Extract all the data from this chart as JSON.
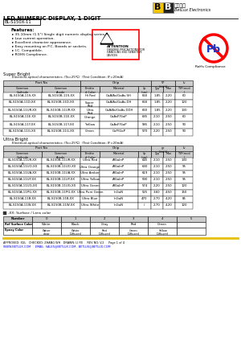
{
  "title": "LED NUMERIC DISPLAY, 1 DIGIT",
  "part_number": "BL-S150X-11",
  "features": [
    "35.10mm (1.5\") Single digit numeric display series.",
    "Low current operation.",
    "Excellent character appearance.",
    "Easy mounting on P.C. Boards or sockets.",
    "I.C. Compatible.",
    "ROHS Compliance."
  ],
  "super_bright_rows": [
    [
      "BL-S150A-11S-XX",
      "BL-S150B-11S-XX",
      "Hi Red",
      "GaAlAs/GaAs.SH",
      "660",
      "1.85",
      "2.20",
      "60"
    ],
    [
      "BL-S150A-11D-XX",
      "BL-S150B-11D-XX",
      "Super\nRed",
      "GaAlAs/GaAs.DH",
      "660",
      "1.85",
      "2.20",
      "120"
    ],
    [
      "BL-S150A-11UR-XX",
      "BL-S150B-11UR-XX",
      "Ultra\nRed",
      "GaAlAs/GaAs.DDH",
      "660",
      "1.85",
      "2.20",
      "130"
    ],
    [
      "BL-S150A-11E-XX",
      "BL-S150B-11E-XX",
      "Orange",
      "GaAsP/GaP",
      "635",
      "2.10",
      "2.50",
      "60"
    ],
    [
      "BL-S150A-11Y-XX",
      "BL-S150B-11Y-XX",
      "Yellow",
      "GaAsP/GaP",
      "585",
      "2.10",
      "2.50",
      "90"
    ],
    [
      "BL-S150A-11G-XX",
      "BL-S150B-11G-XX",
      "Green",
      "GaP/GaP",
      "570",
      "2.20",
      "2.50",
      "90"
    ]
  ],
  "ultra_bright_rows": [
    [
      "BL-S150A-11UR-XX\nX",
      "BL-S150B-11UR-XX\nX",
      "Ultra Red",
      "AlGaInP",
      "645",
      "2.10",
      "2.50",
      "130"
    ],
    [
      "BL-S150A-11UO-XX",
      "BL-S150B-11UO-XX",
      "Ultra Orange",
      "AlGaInP",
      "630",
      "2.10",
      "2.50",
      "95"
    ],
    [
      "BL-S150A-11UA-XX",
      "BL-S150B-11UA-XX",
      "Ultra Amber",
      "AlGaInP",
      "619",
      "2.10",
      "2.50",
      "95"
    ],
    [
      "BL-S150A-11UY-XX",
      "BL-S150B-11UY-XX",
      "Ultra Yellow",
      "AlGaInP",
      "590",
      "2.10",
      "2.50",
      "95"
    ],
    [
      "BL-S150A-11UG-XX",
      "BL-S150B-11UG-XX",
      "Ultra Green",
      "AlGaInP",
      "574",
      "2.20",
      "2.50",
      "120"
    ],
    [
      "BL-S150A-11PG-XX",
      "BL-S150B-11PG-XX",
      "Ultra Pure Green",
      "InGaN",
      "525",
      "3.60",
      "4.50",
      "150"
    ],
    [
      "BL-S150A-11B-XX",
      "BL-S150B-11B-XX",
      "Ultra Blue",
      "InGaN",
      "470",
      "2.70",
      "4.20",
      "85"
    ],
    [
      "BL-S150A-11W-XX",
      "BL-S150B-11W-XX",
      "Ultra White",
      "InGaN",
      "/",
      "2.70",
      "4.20",
      "120"
    ]
  ],
  "surface_numbers": [
    "0",
    "1",
    "2",
    "3",
    "4",
    "5"
  ],
  "ref_surface": [
    "White",
    "Black",
    "Gray",
    "Red",
    "Green",
    ""
  ],
  "epoxy_color": [
    "Water\nclear",
    "White\nDiffused",
    "Red\nDiffused",
    "Green\nDiffused",
    "Yellow\nDiffused",
    ""
  ],
  "footer": "APPROVED: XUL   CHECKED: ZHANG WH   DRAWN: LI FB     REV NO: V.2     Page 1 of 4",
  "footer_url": "WWW.BETLUX.COM     EMAIL: SALES@BETLUX.COM , BETLUX@BETLUX.COM",
  "bg_color": "#ffffff"
}
